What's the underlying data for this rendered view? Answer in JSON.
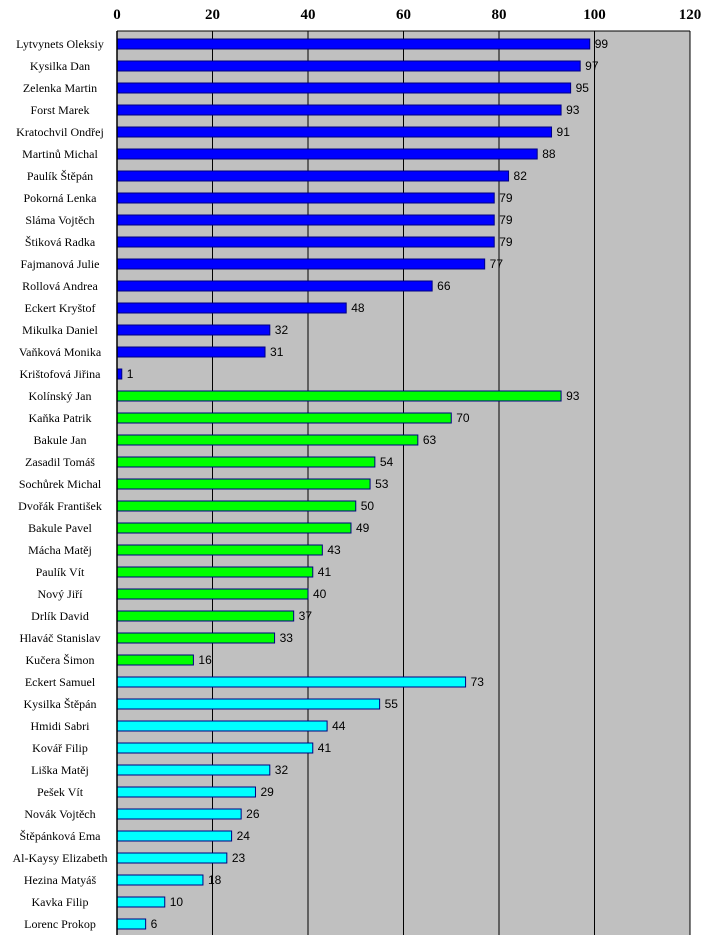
{
  "chart_data": {
    "type": "bar",
    "orientation": "horizontal",
    "title": "",
    "xlabel": "",
    "ylabel": "",
    "xlim": [
      0,
      120
    ],
    "x_ticks": [
      0,
      20,
      40,
      60,
      80,
      100,
      120
    ],
    "x_axis_position": "top",
    "grid": true,
    "colors": {
      "plot_bg": "#c0c0c0",
      "group1": "#0000ff",
      "group2": "#00ff00",
      "group3": "#00ffff",
      "bar_edge": "#000080"
    },
    "series": [
      {
        "name": "group1",
        "color": "#0000ff",
        "categories": [
          "Lytvynets Oleksiy",
          "Kysilka Dan",
          "Zelenka Martin",
          "Forst Marek",
          "Kratochvil Ondřej",
          "Martinů Michal",
          "Paulík Štěpán",
          "Pokorná Lenka",
          "Sláma Vojtěch",
          "Štiková Radka",
          "Fajmanová Julie",
          "Rollová Andrea",
          "Eckert Kryštof",
          "Mikulka Daniel",
          "Vaňková Monika",
          "Krištofová Jiřina"
        ],
        "values": [
          99,
          97,
          95,
          93,
          91,
          88,
          82,
          79,
          79,
          79,
          77,
          66,
          48,
          32,
          31,
          1
        ]
      },
      {
        "name": "group2",
        "color": "#00ff00",
        "categories": [
          "Kolínský Jan",
          "Kaňka Patrik",
          "Bakule Jan",
          "Zasadil Tomáš",
          "Sochůrek Michal",
          "Dvořák František",
          "Bakule Pavel",
          "Mácha Matěj",
          "Paulík Vít",
          "Nový Jiří",
          "Drlík David",
          "Hlaváč Stanislav",
          "Kučera Šimon"
        ],
        "values": [
          93,
          70,
          63,
          54,
          53,
          50,
          49,
          43,
          41,
          40,
          37,
          33,
          16
        ]
      },
      {
        "name": "group3",
        "color": "#00ffff",
        "categories": [
          "Eckert Samuel",
          "Kysilka Štěpán",
          "Hmidi Sabri",
          "Kovář Filip",
          "Liška Matěj",
          "Pešek Vít",
          "Novák Vojtěch",
          "Štěpánková Ema",
          "Al-Kaysy Elizabeth",
          "Hezina Matyáš",
          "Kavka Filip",
          "Lorenc Prokop"
        ],
        "values": [
          73,
          55,
          44,
          41,
          32,
          29,
          26,
          24,
          23,
          18,
          10,
          6
        ]
      }
    ]
  }
}
